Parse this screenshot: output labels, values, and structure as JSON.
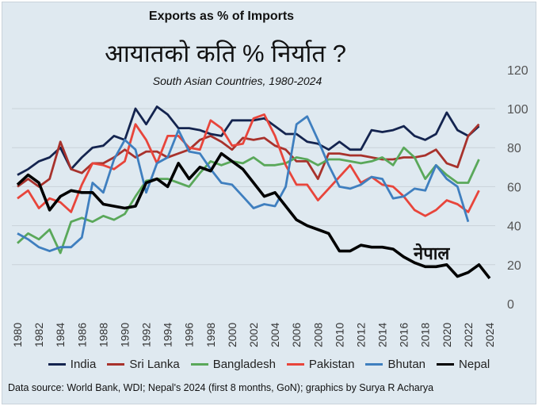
{
  "colors": {
    "India": "#14244f",
    "Sri Lanka": "#a8322c",
    "Bangladesh": "#5aa85a",
    "Pakistan": "#e8453b",
    "Bhutan": "#3f7fbf",
    "Nepal": "#000000",
    "grid": "#c9d2d9"
  },
  "source": "Data source: World Bank, WDI; Nepal's 2024 (first 8 months, GoN); graphics by Surya R Acharya",
  "chart_data": {
    "type": "line",
    "title": "Exports as % of Imports",
    "title_nepali": "आयातको कति % निर्यात ?",
    "subtitle": "South Asian Countries, 1980-2024",
    "annotation": "नेपाल",
    "xlabel": "",
    "ylabel": "",
    "ylim": [
      0,
      120
    ],
    "yticks": [
      0,
      20,
      40,
      60,
      80,
      100,
      120
    ],
    "xlim": [
      1980,
      2024
    ],
    "xticks": [
      1980,
      1982,
      1984,
      1986,
      1988,
      1990,
      1992,
      1994,
      1996,
      1998,
      2000,
      2002,
      2004,
      2006,
      2008,
      2010,
      2012,
      2014,
      2016,
      2018,
      2020,
      2022,
      2024
    ],
    "y_axis_side": "right",
    "grid": true,
    "legend_position": "bottom",
    "series": [
      {
        "name": "India",
        "start": 1980,
        "values": [
          66,
          69,
          73,
          75,
          80,
          69,
          75,
          80,
          81,
          86,
          84,
          100,
          92,
          101,
          97,
          90,
          90,
          89,
          87,
          86,
          94,
          94,
          94,
          95,
          91,
          87,
          87,
          83,
          82,
          79,
          83,
          79,
          79,
          89,
          88,
          89,
          91,
          86,
          84,
          87,
          98,
          89,
          86,
          91
        ]
      },
      {
        "name": "Sri Lanka",
        "start": 1980,
        "values": [
          60,
          64,
          60,
          64,
          83,
          69,
          67,
          72,
          72,
          75,
          79,
          75,
          78,
          78,
          75,
          77,
          79,
          84,
          86,
          83,
          79,
          85,
          84,
          85,
          81,
          79,
          73,
          73,
          64,
          77,
          77,
          76,
          76,
          75,
          74,
          74,
          75,
          75,
          76,
          79,
          72,
          70,
          86,
          92
        ]
      },
      {
        "name": "Bangladesh",
        "start": 1980,
        "values": [
          31,
          36,
          33,
          38,
          26,
          42,
          44,
          42,
          45,
          43,
          46,
          55,
          63,
          64,
          64,
          62,
          60,
          67,
          73,
          71,
          73,
          72,
          75,
          71,
          71,
          72,
          75,
          74,
          71,
          74,
          74,
          73,
          72,
          73,
          75,
          71,
          80,
          75,
          64,
          71,
          66,
          62,
          62,
          74
        ]
      },
      {
        "name": "Pakistan",
        "start": 1980,
        "values": [
          54,
          58,
          49,
          54,
          52,
          47,
          61,
          72,
          71,
          69,
          73,
          92,
          84,
          72,
          86,
          86,
          80,
          79,
          94,
          90,
          81,
          82,
          95,
          97,
          86,
          71,
          61,
          61,
          53,
          59,
          65,
          71,
          62,
          65,
          61,
          60,
          55,
          48,
          45,
          48,
          53,
          51,
          47,
          58
        ]
      },
      {
        "name": "Bhutan",
        "start": 1980,
        "values": [
          36,
          33,
          29,
          27,
          29,
          29,
          34,
          62,
          57,
          74,
          84,
          79,
          57,
          72,
          75,
          89,
          78,
          77,
          69,
          62,
          61,
          55,
          49,
          51,
          50,
          60,
          92,
          96,
          84,
          71,
          60,
          59,
          61,
          65,
          64,
          54,
          55,
          59,
          58,
          71,
          64,
          60,
          42
        ]
      },
      {
        "name": "Nepal",
        "start": 1980,
        "values": [
          61,
          66,
          62,
          48,
          55,
          58,
          57,
          57,
          51,
          50,
          49,
          50,
          62,
          64,
          60,
          72,
          64,
          70,
          68,
          77,
          73,
          69,
          62,
          55,
          57,
          50,
          43,
          40,
          38,
          36,
          27,
          27,
          30,
          29,
          29,
          28,
          24,
          21,
          19,
          19,
          20,
          14,
          16,
          20,
          13
        ]
      }
    ]
  }
}
